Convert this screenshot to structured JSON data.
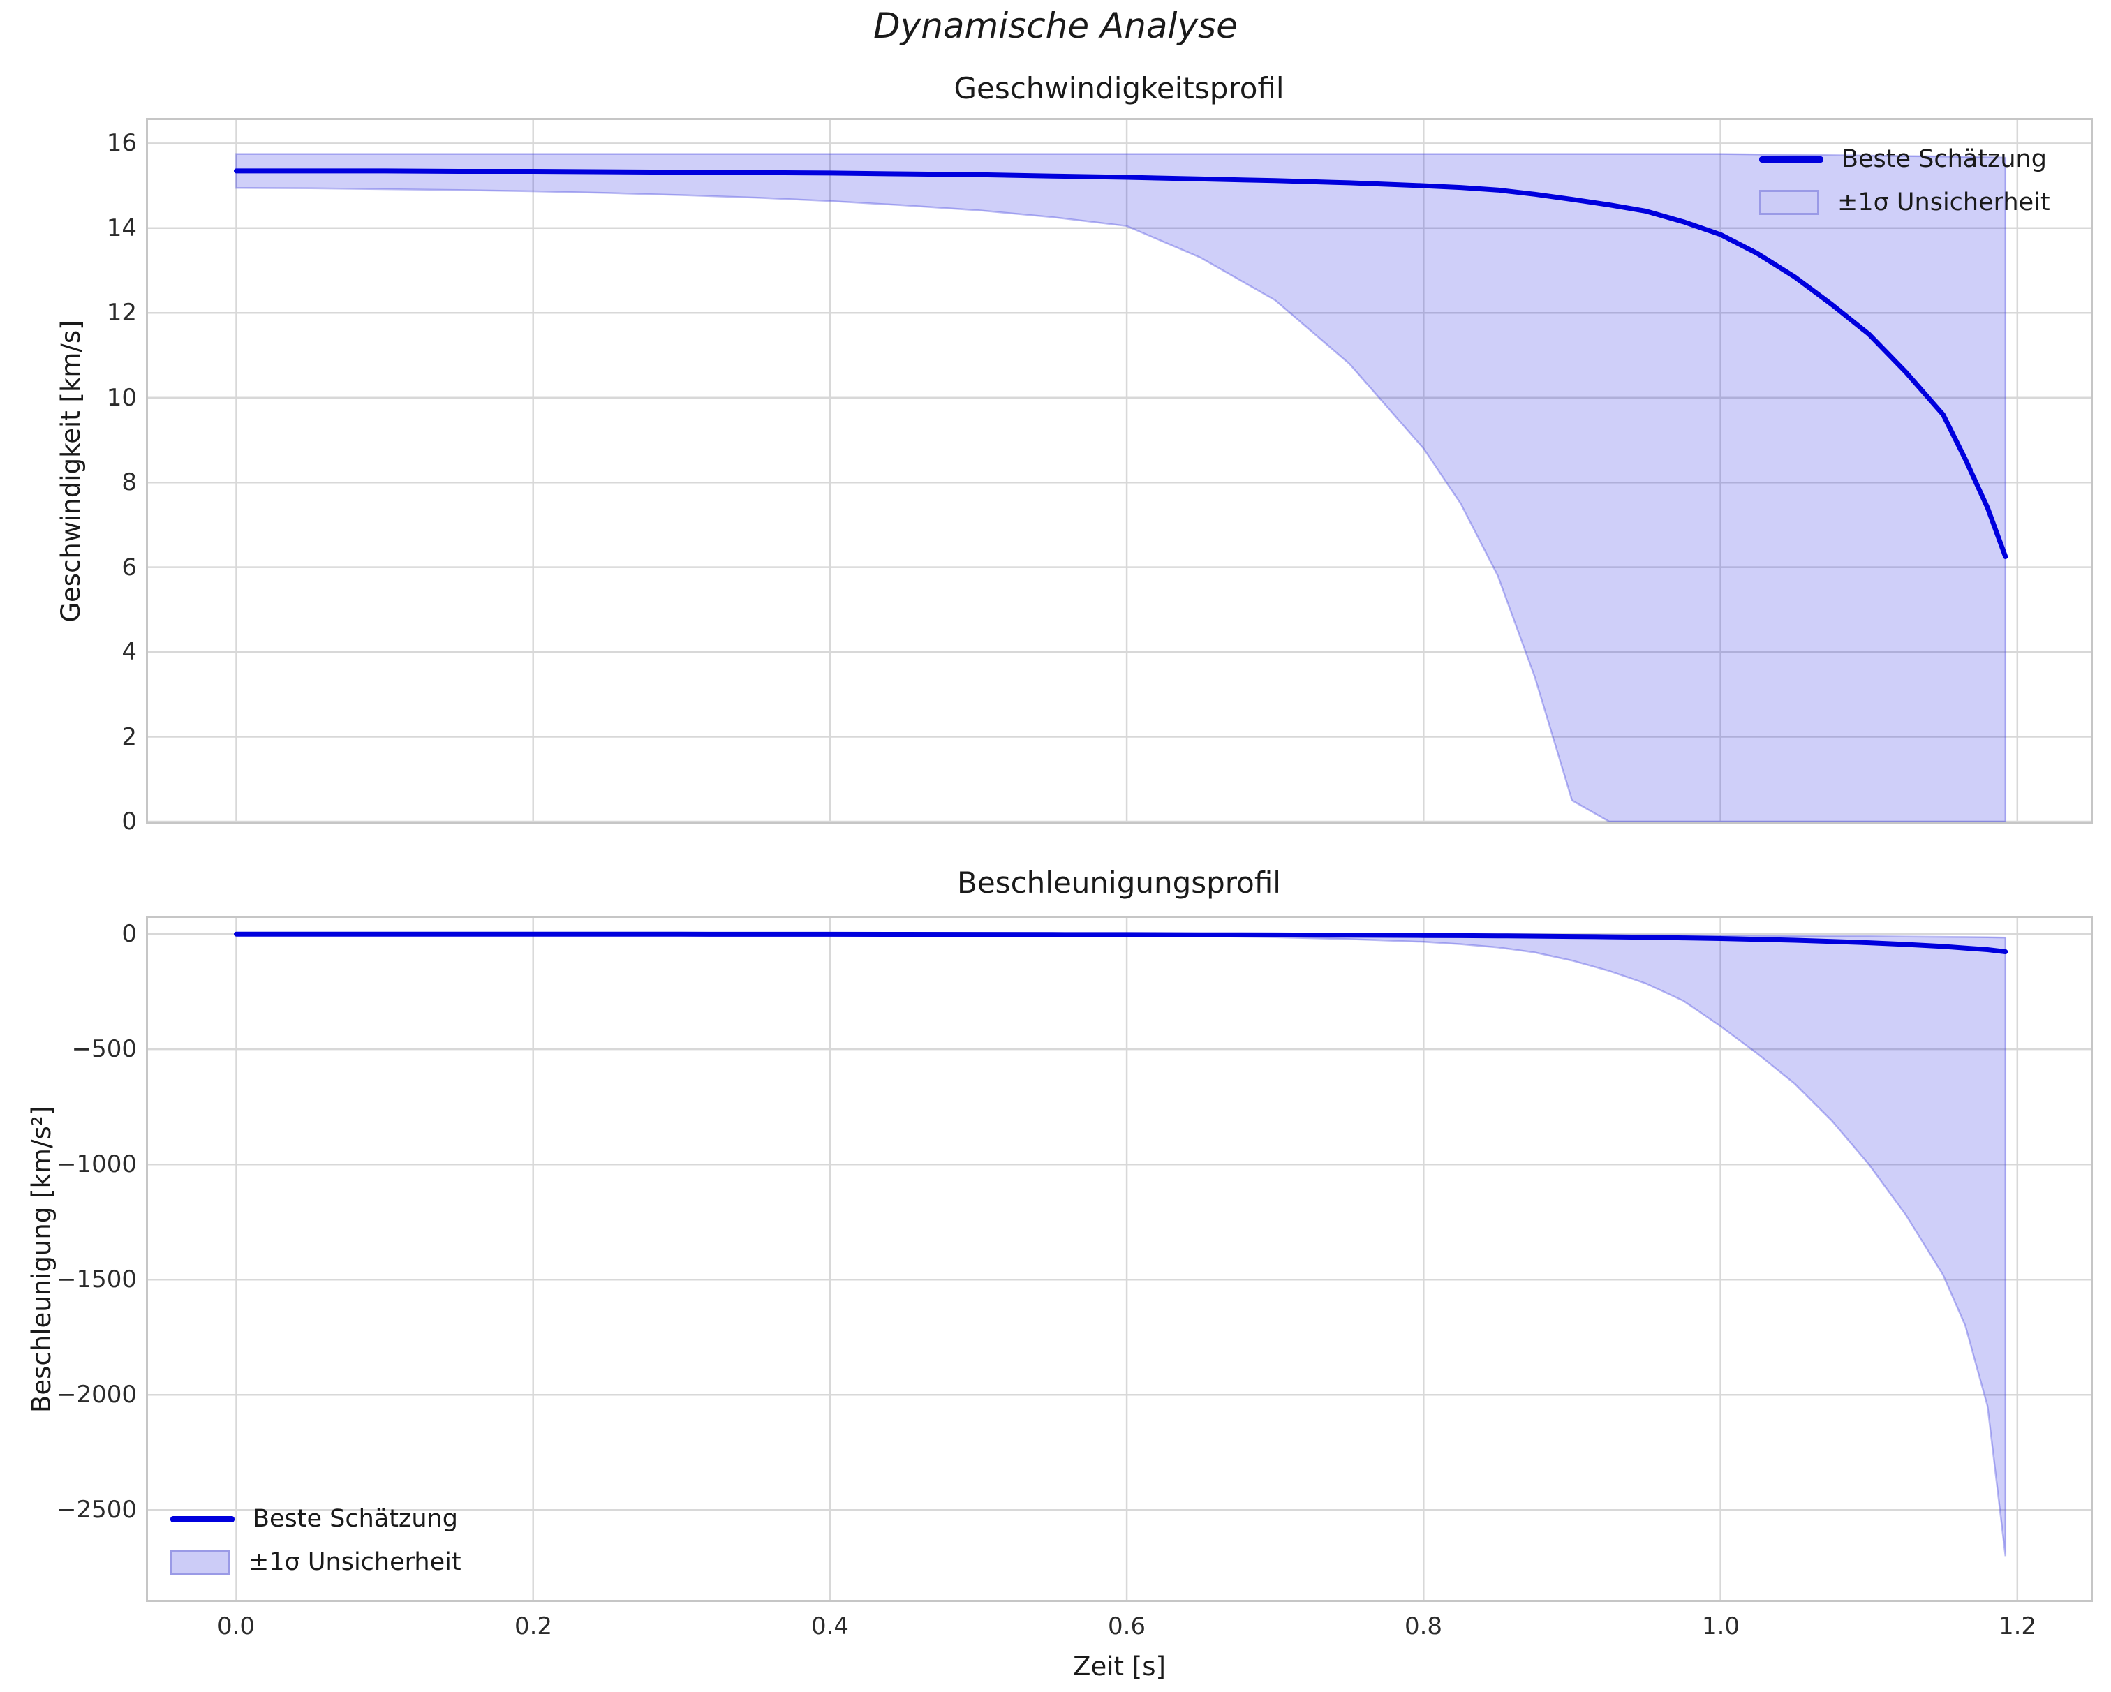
{
  "figure": {
    "suptitle": "Dynamische Analyse",
    "xlabel": "Zeit [s]",
    "legend": {
      "line_label": "Beste Schätzung",
      "band_label": "±1σ Unsicherheit"
    },
    "colors": {
      "line": "#0000dd",
      "band_fill": "rgba(15,15,225,0.2)",
      "band_fill_solid": "#ccccf7",
      "band_edge": "rgba(80,80,225,0.4)",
      "band_edge_solid": "#9a9ae6",
      "grid": "#d8d8d8",
      "spine": "#c6c6c6",
      "text": "#262626"
    }
  },
  "chart_data": [
    {
      "type": "line",
      "title": "Geschwindigkeitsprofil",
      "ylabel": "Geschwindigkeit [km/s]",
      "xlabel": "Zeit [s]",
      "legend_entries": [
        "Beste Schätzung",
        "±1σ Unsicherheit"
      ],
      "legend_position": "upper right",
      "grid": true,
      "xlim": [
        -0.0595,
        1.2495
      ],
      "ylim": [
        0,
        16.55
      ],
      "xgrid": [
        0.0,
        0.2,
        0.4,
        0.6,
        0.8,
        1.0,
        1.2
      ],
      "ygrid": [
        0,
        2,
        4,
        6,
        8,
        10,
        12,
        14,
        16
      ],
      "ytick_labels": [
        "16",
        "14",
        "12",
        "10",
        "8",
        "6",
        "4",
        "2",
        "0"
      ],
      "series": {
        "t": [
          0,
          0.05,
          0.1,
          0.15,
          0.2,
          0.25,
          0.3,
          0.35,
          0.4,
          0.45,
          0.5,
          0.55,
          0.6,
          0.65,
          0.7,
          0.75,
          0.8,
          0.825,
          0.85,
          0.875,
          0.9,
          0.925,
          0.95,
          0.975,
          1.0,
          1.025,
          1.05,
          1.075,
          1.1,
          1.125,
          1.15,
          1.165,
          1.18,
          1.192
        ],
        "best": [
          15.35,
          15.35,
          15.35,
          15.34,
          15.34,
          15.33,
          15.32,
          15.31,
          15.3,
          15.28,
          15.26,
          15.23,
          15.2,
          15.16,
          15.12,
          15.07,
          15.0,
          14.96,
          14.9,
          14.8,
          14.68,
          14.55,
          14.4,
          14.15,
          13.85,
          13.4,
          12.85,
          12.2,
          11.5,
          10.6,
          9.6,
          8.55,
          7.4,
          6.25
        ],
        "upper": [
          15.75,
          15.75,
          15.75,
          15.75,
          15.75,
          15.75,
          15.75,
          15.75,
          15.75,
          15.75,
          15.75,
          15.75,
          15.75,
          15.75,
          15.75,
          15.75,
          15.75,
          15.75,
          15.75,
          15.75,
          15.75,
          15.75,
          15.75,
          15.75,
          15.75,
          15.74,
          15.73,
          15.72,
          15.71,
          15.7,
          15.69,
          15.68,
          15.67,
          15.66
        ],
        "lower": [
          14.95,
          14.94,
          14.92,
          14.9,
          14.87,
          14.83,
          14.78,
          14.72,
          14.64,
          14.54,
          14.42,
          14.26,
          14.05,
          13.3,
          12.3,
          10.8,
          8.8,
          7.5,
          5.8,
          3.4,
          0.5,
          0,
          0,
          0,
          0,
          0,
          0,
          0,
          0,
          0,
          0,
          0,
          0,
          0
        ]
      }
    },
    {
      "type": "line",
      "title": "Beschleunigungsprofil",
      "ylabel": "Beschleunigung [km/s²]",
      "xlabel": "Zeit [s]",
      "legend_entries": [
        "Beste Schätzung",
        "±1σ Unsicherheit"
      ],
      "legend_position": "lower left",
      "grid": true,
      "xlim": [
        -0.0595,
        1.2495
      ],
      "ylim": [
        -2890,
        70
      ],
      "xgrid": [
        0.0,
        0.2,
        0.4,
        0.6,
        0.8,
        1.0,
        1.2
      ],
      "ygrid": [
        0,
        -500,
        -1000,
        -1500,
        -2000,
        -2500
      ],
      "ytick_labels": [
        "0",
        "−500",
        "−1000",
        "−1500",
        "−2000",
        "−2500"
      ],
      "xtick_labels": [
        "0.0",
        "0.2",
        "0.4",
        "0.6",
        "0.8",
        "1.0",
        "1.2"
      ],
      "series": {
        "t": [
          0,
          0.05,
          0.1,
          0.15,
          0.2,
          0.25,
          0.3,
          0.35,
          0.4,
          0.45,
          0.5,
          0.55,
          0.6,
          0.65,
          0.7,
          0.75,
          0.8,
          0.825,
          0.85,
          0.875,
          0.9,
          0.925,
          0.95,
          0.975,
          1.0,
          1.025,
          1.05,
          1.075,
          1.1,
          1.125,
          1.15,
          1.165,
          1.18,
          1.192
        ],
        "best": [
          -0.3,
          -0.3,
          -0.35,
          -0.4,
          -0.5,
          -0.6,
          -0.7,
          -0.85,
          -1.0,
          -1.3,
          -1.6,
          -2.0,
          -2.5,
          -3.2,
          -4.0,
          -5.0,
          -6.3,
          -7.1,
          -8.0,
          -9.1,
          -10.5,
          -12,
          -14,
          -16.5,
          -19.5,
          -23,
          -27,
          -32,
          -38,
          -45,
          -54,
          -61,
          -68,
          -77
        ],
        "upper": [
          -0.2,
          -0.2,
          -0.2,
          -0.25,
          -0.3,
          -0.35,
          -0.4,
          -0.5,
          -0.6,
          -0.7,
          -0.85,
          -1.0,
          -1.2,
          -1.5,
          -1.8,
          -2.2,
          -2.6,
          -2.9,
          -3.2,
          -3.6,
          -4.0,
          -4.5,
          -5.0,
          -5.6,
          -6.3,
          -7.0,
          -7.8,
          -8.7,
          -9.7,
          -10.8,
          -12,
          -13,
          -14,
          -15.5
        ],
        "lower": [
          -0.5,
          -0.5,
          -0.6,
          -0.7,
          -0.9,
          -1.1,
          -1.4,
          -1.8,
          -2.3,
          -3.0,
          -4.0,
          -5.0,
          -6.5,
          -9,
          -14,
          -22,
          -34,
          -44,
          -58,
          -80,
          -115,
          -160,
          -215,
          -290,
          -400,
          -520,
          -650,
          -810,
          -1000,
          -1220,
          -1480,
          -1700,
          -2050,
          -2700
        ]
      }
    }
  ]
}
